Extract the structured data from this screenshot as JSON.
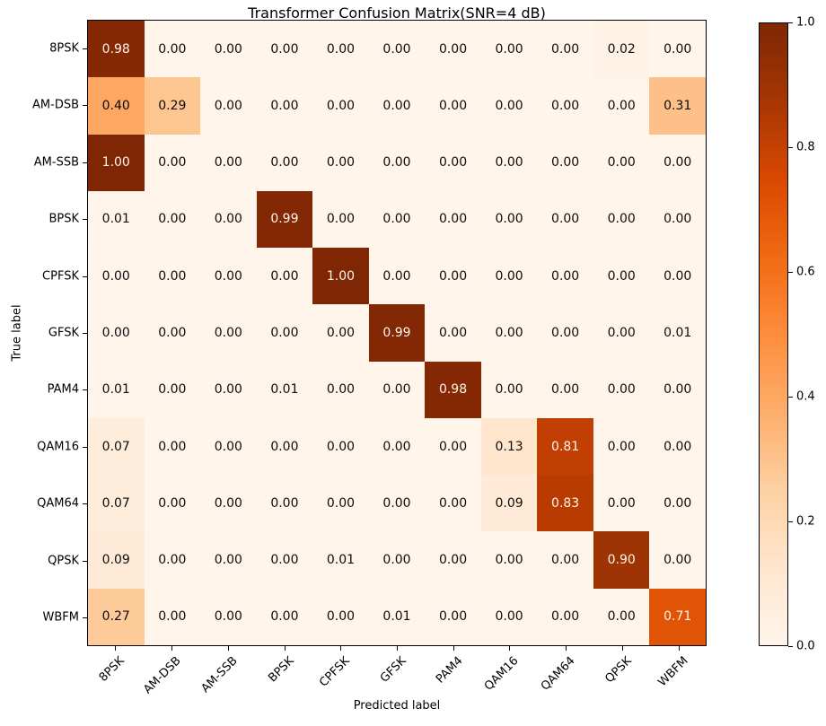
{
  "chart_data": {
    "type": "heatmap",
    "title": "Transformer Confusion Matrix(SNR=4 dB)",
    "xlabel": "Predicted label",
    "ylabel": "True label",
    "classes": [
      "8PSK",
      "AM-DSB",
      "AM-SSB",
      "BPSK",
      "CPFSK",
      "GFSK",
      "PAM4",
      "QAM16",
      "QAM64",
      "QPSK",
      "WBFM"
    ],
    "matrix": [
      [
        0.98,
        0.0,
        0.0,
        0.0,
        0.0,
        0.0,
        0.0,
        0.0,
        0.0,
        0.02,
        0.0
      ],
      [
        0.4,
        0.29,
        0.0,
        0.0,
        0.0,
        0.0,
        0.0,
        0.0,
        0.0,
        0.0,
        0.31
      ],
      [
        1.0,
        0.0,
        0.0,
        0.0,
        0.0,
        0.0,
        0.0,
        0.0,
        0.0,
        0.0,
        0.0
      ],
      [
        0.01,
        0.0,
        0.0,
        0.99,
        0.0,
        0.0,
        0.0,
        0.0,
        0.0,
        0.0,
        0.0
      ],
      [
        0.0,
        0.0,
        0.0,
        0.0,
        1.0,
        0.0,
        0.0,
        0.0,
        0.0,
        0.0,
        0.0
      ],
      [
        0.0,
        0.0,
        0.0,
        0.0,
        0.0,
        0.99,
        0.0,
        0.0,
        0.0,
        0.0,
        0.01
      ],
      [
        0.01,
        0.0,
        0.0,
        0.01,
        0.0,
        0.0,
        0.98,
        0.0,
        0.0,
        0.0,
        0.0
      ],
      [
        0.07,
        0.0,
        0.0,
        0.0,
        0.0,
        0.0,
        0.0,
        0.13,
        0.81,
        0.0,
        0.0
      ],
      [
        0.07,
        0.0,
        0.0,
        0.0,
        0.0,
        0.0,
        0.0,
        0.09,
        0.83,
        0.0,
        0.0
      ],
      [
        0.09,
        0.0,
        0.0,
        0.0,
        0.01,
        0.0,
        0.0,
        0.0,
        0.0,
        0.9,
        0.0
      ],
      [
        0.27,
        0.0,
        0.0,
        0.0,
        0.0,
        0.01,
        0.0,
        0.0,
        0.0,
        0.0,
        0.71
      ]
    ],
    "vmin": 0.0,
    "vmax": 1.0,
    "value_decimals": 2,
    "colorbar_ticks": [
      0.0,
      0.2,
      0.4,
      0.6,
      0.8,
      1.0
    ],
    "colorbar_tick_decimals": 1,
    "legend_position": "right-colorbar",
    "grid": false,
    "colormap": {
      "name": "Oranges",
      "stops": [
        0.0,
        0.125,
        0.25,
        0.375,
        0.5,
        0.625,
        0.75,
        0.875,
        1.0
      ],
      "colors": [
        "#fff5eb",
        "#fee6ce",
        "#fdd0a2",
        "#fdae6b",
        "#fd8d3c",
        "#f16913",
        "#d94801",
        "#a63603",
        "#7f2704"
      ]
    },
    "text_color_threshold": 0.5,
    "cell_text_light": "#fff5eb",
    "cell_text_dark": "#0d0d0d",
    "axis_color": "#000000"
  }
}
